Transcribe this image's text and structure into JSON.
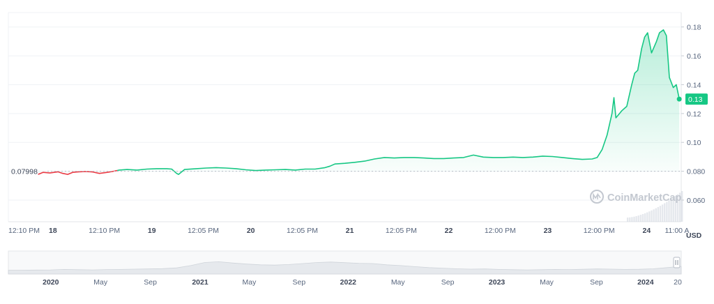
{
  "chart_data": {
    "type": "area",
    "currency": "USD",
    "watermark": "CoinMarketCap",
    "reference_line": {
      "value": 0.07998,
      "label": "0.07998"
    },
    "current_price": {
      "value": 0.13,
      "label": "0.13"
    },
    "ylim": [
      0.045,
      0.19
    ],
    "y_ticks": [
      {
        "value": 0.18,
        "label": "0.18"
      },
      {
        "value": 0.16,
        "label": "0.16"
      },
      {
        "value": 0.14,
        "label": "0.14"
      },
      {
        "value": 0.12,
        "label": "0.12"
      },
      {
        "value": 0.1,
        "label": "0.10"
      },
      {
        "value": 0.08,
        "label": "0.080"
      },
      {
        "value": 0.06,
        "label": "0.060"
      }
    ],
    "x_range": [
      0,
      6.8
    ],
    "x_ticks": [
      {
        "x": 0.0,
        "label": "12:10 PM",
        "bold": false
      },
      {
        "x": 0.45,
        "label": "18",
        "bold": true
      },
      {
        "x": 0.97,
        "label": "12:10 PM",
        "bold": false
      },
      {
        "x": 1.45,
        "label": "19",
        "bold": true
      },
      {
        "x": 1.97,
        "label": "12:05 PM",
        "bold": false
      },
      {
        "x": 2.45,
        "label": "20",
        "bold": true
      },
      {
        "x": 2.97,
        "label": "12:05 PM",
        "bold": false
      },
      {
        "x": 3.45,
        "label": "21",
        "bold": true
      },
      {
        "x": 3.97,
        "label": "12:05 PM",
        "bold": false
      },
      {
        "x": 4.45,
        "label": "22",
        "bold": true
      },
      {
        "x": 4.97,
        "label": "12:00 PM",
        "bold": false
      },
      {
        "x": 5.45,
        "label": "23",
        "bold": true
      },
      {
        "x": 5.97,
        "label": "12:00 PM",
        "bold": false
      },
      {
        "x": 6.45,
        "label": "24",
        "bold": true
      },
      {
        "x": 6.88,
        "label": "11:00 A",
        "bold": false
      }
    ],
    "series": [
      {
        "values": [
          [
            0.3,
            0.0778
          ],
          [
            0.35,
            0.0792
          ],
          [
            0.42,
            0.0788
          ],
          [
            0.5,
            0.0796
          ],
          [
            0.55,
            0.0785
          ],
          [
            0.6,
            0.0778
          ],
          [
            0.65,
            0.0792
          ],
          [
            0.7,
            0.0795
          ],
          [
            0.78,
            0.0798
          ],
          [
            0.85,
            0.0795
          ],
          [
            0.92,
            0.0785
          ],
          [
            1.0,
            0.0792
          ],
          [
            1.05,
            0.0798
          ],
          [
            1.12,
            0.0808
          ],
          [
            1.2,
            0.0812
          ],
          [
            1.3,
            0.0808
          ],
          [
            1.4,
            0.0815
          ],
          [
            1.5,
            0.0818
          ],
          [
            1.6,
            0.0818
          ],
          [
            1.65,
            0.0815
          ],
          [
            1.7,
            0.0785
          ],
          [
            1.72,
            0.0778
          ],
          [
            1.78,
            0.0812
          ],
          [
            1.9,
            0.0818
          ],
          [
            2.0,
            0.0822
          ],
          [
            2.1,
            0.0825
          ],
          [
            2.2,
            0.0822
          ],
          [
            2.3,
            0.0818
          ],
          [
            2.4,
            0.081
          ],
          [
            2.5,
            0.0805
          ],
          [
            2.6,
            0.0808
          ],
          [
            2.7,
            0.081
          ],
          [
            2.8,
            0.0812
          ],
          [
            2.9,
            0.0808
          ],
          [
            3.0,
            0.0815
          ],
          [
            3.1,
            0.0815
          ],
          [
            3.2,
            0.0825
          ],
          [
            3.25,
            0.0835
          ],
          [
            3.3,
            0.085
          ],
          [
            3.4,
            0.0855
          ],
          [
            3.5,
            0.0862
          ],
          [
            3.6,
            0.087
          ],
          [
            3.7,
            0.0885
          ],
          [
            3.8,
            0.0895
          ],
          [
            3.9,
            0.0892
          ],
          [
            4.0,
            0.0895
          ],
          [
            4.1,
            0.0895
          ],
          [
            4.2,
            0.0892
          ],
          [
            4.3,
            0.0888
          ],
          [
            4.4,
            0.0888
          ],
          [
            4.5,
            0.0892
          ],
          [
            4.6,
            0.0895
          ],
          [
            4.7,
            0.0912
          ],
          [
            4.8,
            0.0898
          ],
          [
            4.9,
            0.0895
          ],
          [
            5.0,
            0.0895
          ],
          [
            5.1,
            0.0898
          ],
          [
            5.2,
            0.0895
          ],
          [
            5.3,
            0.0898
          ],
          [
            5.4,
            0.0905
          ],
          [
            5.5,
            0.0902
          ],
          [
            5.6,
            0.0895
          ],
          [
            5.7,
            0.0888
          ],
          [
            5.8,
            0.0882
          ],
          [
            5.9,
            0.0885
          ],
          [
            5.95,
            0.0895
          ],
          [
            6.0,
            0.095
          ],
          [
            6.05,
            0.105
          ],
          [
            6.1,
            0.12
          ],
          [
            6.12,
            0.131
          ],
          [
            6.14,
            0.117
          ],
          [
            6.2,
            0.122
          ],
          [
            6.25,
            0.125
          ],
          [
            6.3,
            0.14
          ],
          [
            6.33,
            0.148
          ],
          [
            6.36,
            0.15
          ],
          [
            6.4,
            0.165
          ],
          [
            6.43,
            0.173
          ],
          [
            6.46,
            0.176
          ],
          [
            6.5,
            0.162
          ],
          [
            6.55,
            0.17
          ],
          [
            6.58,
            0.176
          ],
          [
            6.62,
            0.178
          ],
          [
            6.65,
            0.174
          ],
          [
            6.68,
            0.145
          ],
          [
            6.72,
            0.138
          ],
          [
            6.75,
            0.14
          ],
          [
            6.78,
            0.13
          ]
        ]
      }
    ],
    "navigator": {
      "labels": [
        {
          "label": "2020",
          "bold": true,
          "pos": 0.063
        },
        {
          "label": "May",
          "bold": false,
          "pos": 0.137
        },
        {
          "label": "Sep",
          "bold": false,
          "pos": 0.211
        },
        {
          "label": "2021",
          "bold": true,
          "pos": 0.285
        },
        {
          "label": "May",
          "bold": false,
          "pos": 0.358
        },
        {
          "label": "Sep",
          "bold": false,
          "pos": 0.432
        },
        {
          "label": "2022",
          "bold": true,
          "pos": 0.505
        },
        {
          "label": "May",
          "bold": false,
          "pos": 0.579
        },
        {
          "label": "Sep",
          "bold": false,
          "pos": 0.653
        },
        {
          "label": "2023",
          "bold": true,
          "pos": 0.726
        },
        {
          "label": "May",
          "bold": false,
          "pos": 0.8
        },
        {
          "label": "Sep",
          "bold": false,
          "pos": 0.874
        },
        {
          "label": "2024",
          "bold": true,
          "pos": 0.947
        },
        {
          "label": "20",
          "bold": false,
          "pos": 1.0
        }
      ]
    }
  }
}
